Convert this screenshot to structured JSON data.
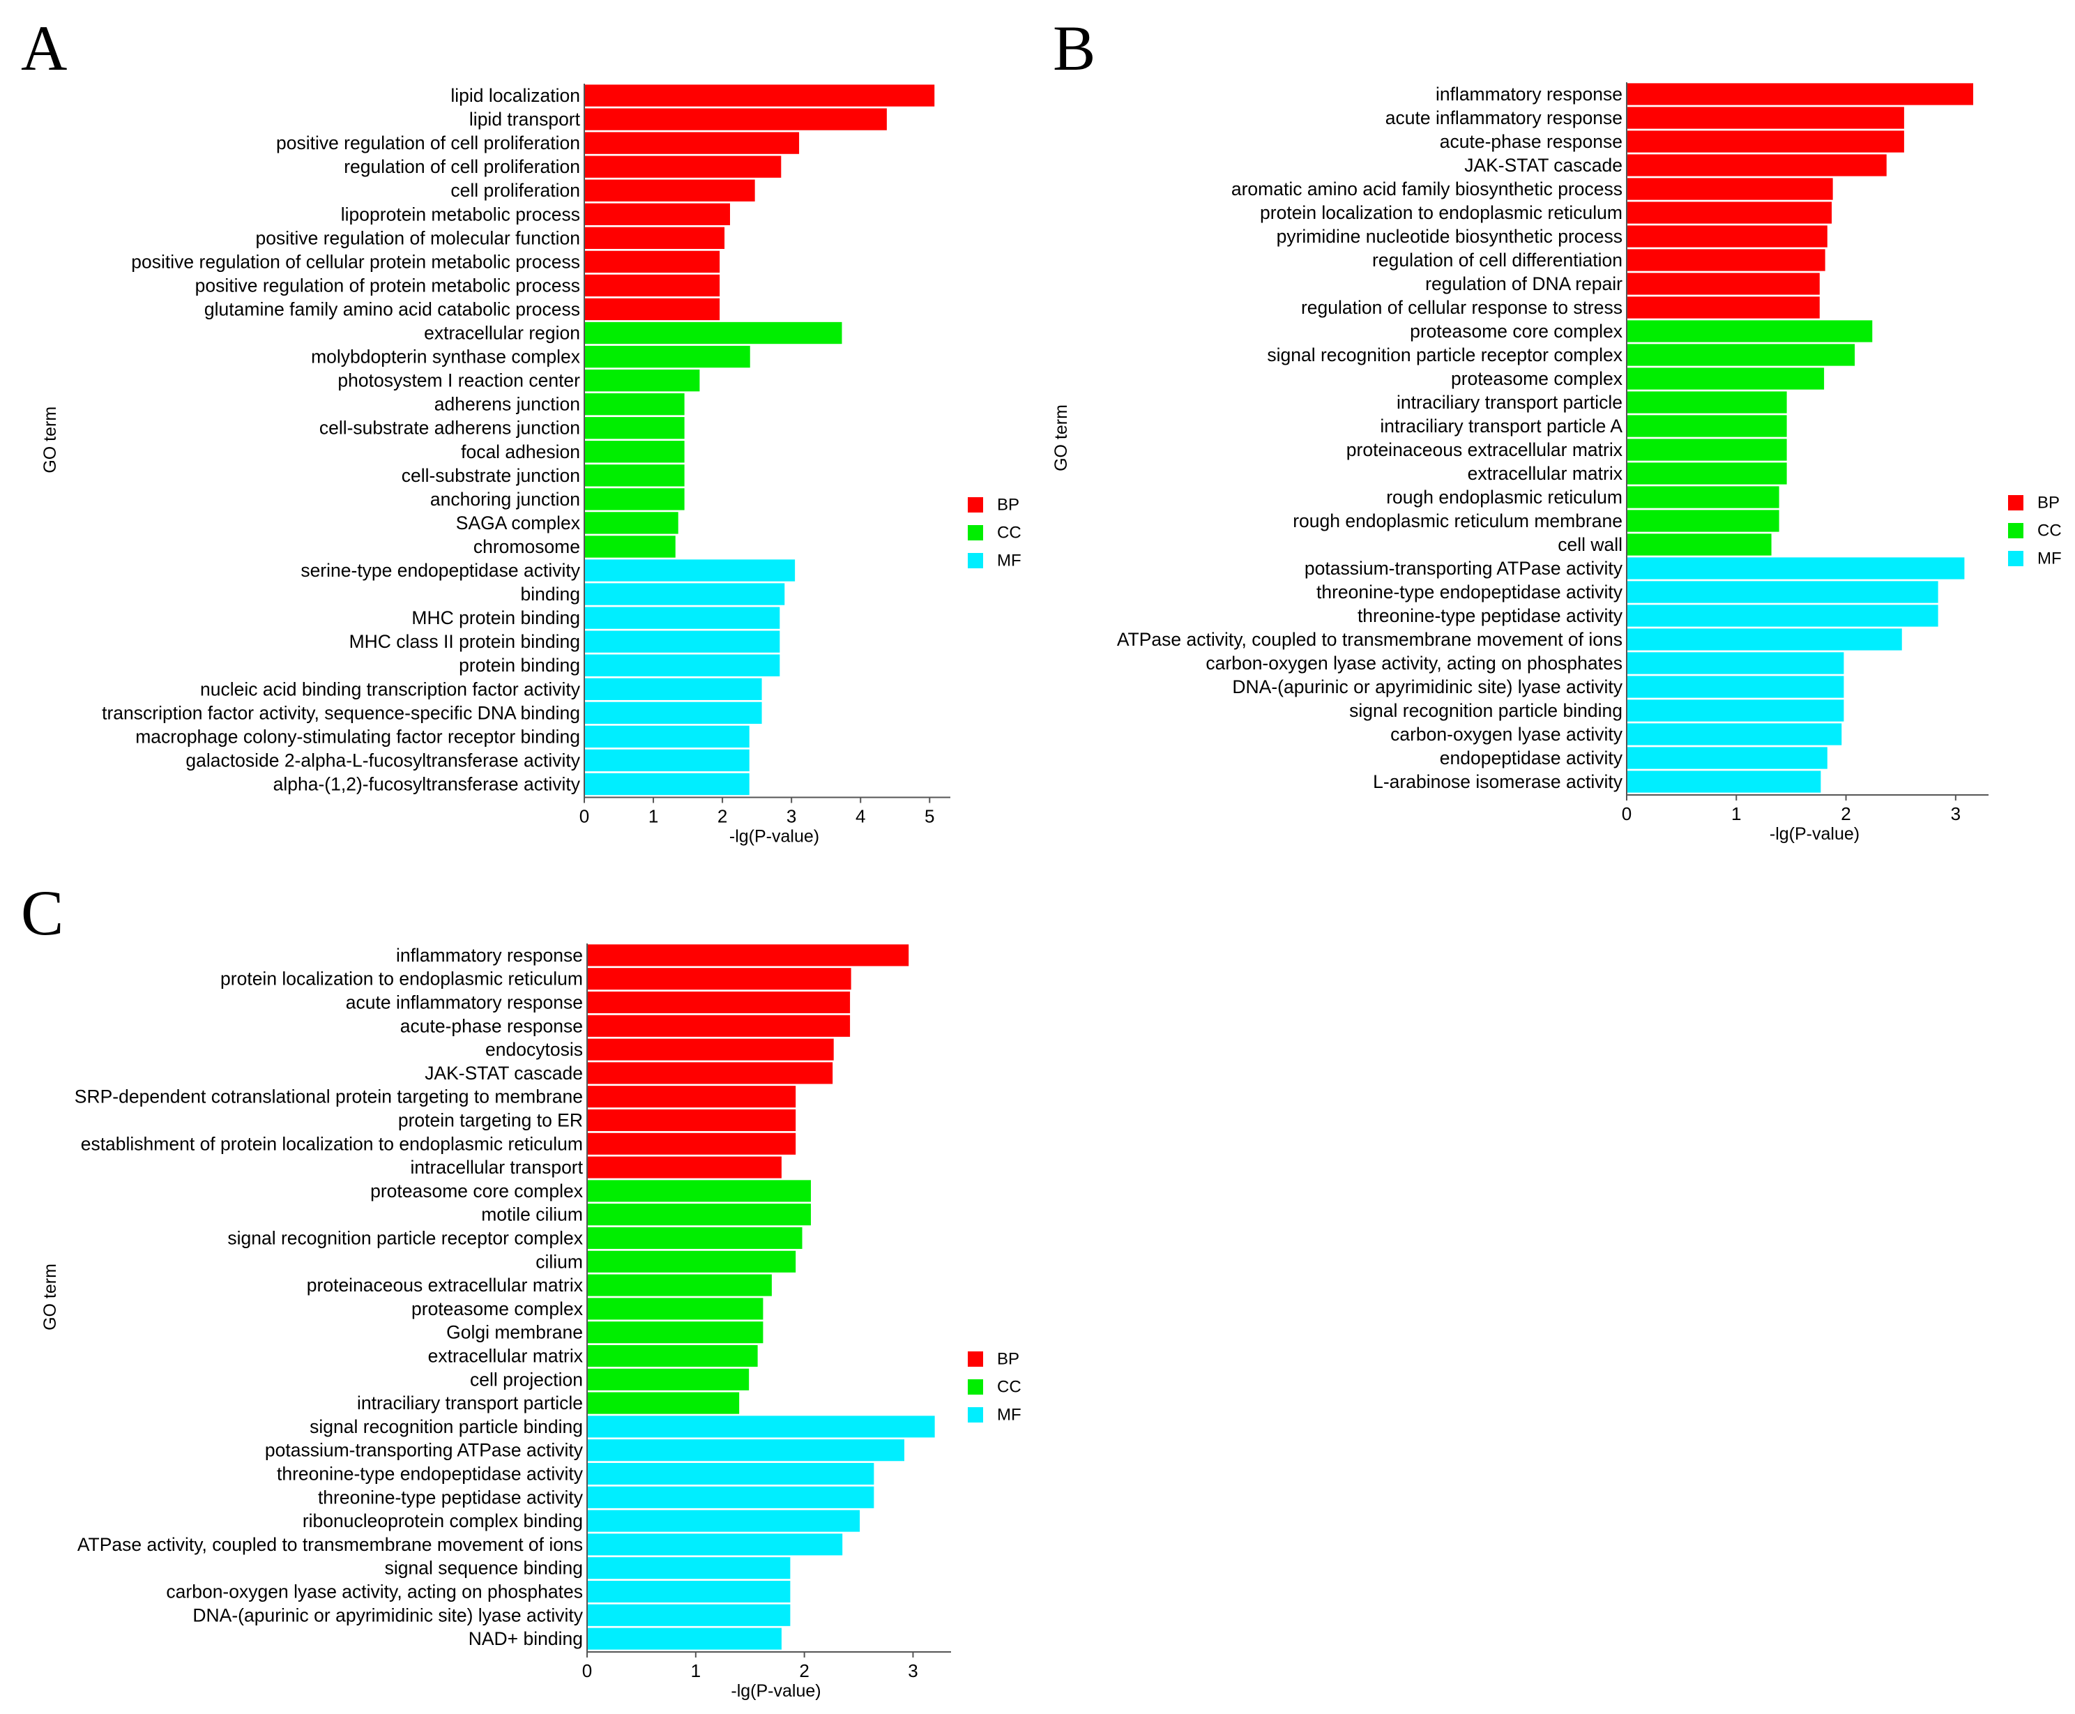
{
  "colors": {
    "BP": "#ff0000",
    "CC": "#00ee00",
    "MF": "#00eeff"
  },
  "chart_data": [
    {
      "type": "bar",
      "orientation": "horizontal",
      "panel": "A",
      "xlabel": "-lg(P-value)",
      "ylabel": "GO term",
      "xlim": [
        0,
        5.3
      ],
      "xticks": [
        0,
        1,
        2,
        3,
        4,
        5
      ],
      "legend": [
        "BP",
        "CC",
        "MF"
      ],
      "categories": [
        "lipid localization",
        "lipid transport",
        "positive regulation of cell proliferation",
        "regulation of cell proliferation",
        "cell proliferation",
        "lipoprotein metabolic process",
        "positive regulation of molecular function",
        "positive regulation of cellular protein metabolic process",
        "positive regulation of protein metabolic process",
        "glutamine family amino acid catabolic process",
        "extracellular region",
        "molybdopterin synthase complex",
        "photosystem I reaction center",
        "adherens junction",
        "cell-substrate adherens junction",
        "focal adhesion",
        "cell-substrate junction",
        "anchoring junction",
        "SAGA complex",
        "chromosome",
        "serine-type endopeptidase activity",
        "binding",
        "MHC protein binding",
        "MHC class II protein binding",
        "protein binding",
        "nucleic acid binding transcription factor activity",
        "transcription factor activity, sequence-specific DNA binding",
        "macrophage colony-stimulating factor receptor binding",
        "galactoside 2-alpha-L-fucosyltransferase activity",
        "alpha-(1,2)-fucosyltransferase activity"
      ],
      "values": [
        5.07,
        4.38,
        3.11,
        2.85,
        2.47,
        2.11,
        2.03,
        1.96,
        1.96,
        1.96,
        3.73,
        2.4,
        1.67,
        1.45,
        1.45,
        1.45,
        1.45,
        1.45,
        1.36,
        1.32,
        3.05,
        2.9,
        2.83,
        2.83,
        2.83,
        2.57,
        2.57,
        2.39,
        2.39,
        2.39
      ],
      "groups": [
        "BP",
        "BP",
        "BP",
        "BP",
        "BP",
        "BP",
        "BP",
        "BP",
        "BP",
        "BP",
        "CC",
        "CC",
        "CC",
        "CC",
        "CC",
        "CC",
        "CC",
        "CC",
        "CC",
        "CC",
        "MF",
        "MF",
        "MF",
        "MF",
        "MF",
        "MF",
        "MF",
        "MF",
        "MF",
        "MF"
      ]
    },
    {
      "type": "bar",
      "orientation": "horizontal",
      "panel": "B",
      "xlabel": "-lg(P-value)",
      "ylabel": "GO term",
      "xlim": [
        0,
        3.3
      ],
      "xticks": [
        0,
        1,
        2,
        3
      ],
      "legend": [
        "BP",
        "CC",
        "MF"
      ],
      "categories": [
        "inflammatory response",
        "acute inflammatory response",
        "acute-phase response",
        "JAK-STAT cascade",
        "aromatic amino acid family biosynthetic process",
        "protein localization to endoplasmic reticulum",
        "pyrimidine nucleotide biosynthetic process",
        "regulation of cell differentiation",
        "regulation of DNA repair",
        "regulation of cellular response to stress",
        "proteasome core complex",
        "signal recognition particle receptor complex",
        "proteasome complex",
        "intraciliary transport particle",
        "intraciliary transport particle A",
        "proteinaceous extracellular matrix",
        "extracellular matrix",
        "rough endoplasmic reticulum",
        "rough endoplasmic reticulum membrane",
        "cell wall",
        "potassium-transporting ATPase activity",
        "threonine-type endopeptidase activity",
        "threonine-type peptidase activity",
        "ATPase activity, coupled to transmembrane movement of ions",
        "carbon-oxygen lyase activity, acting on phosphates",
        "DNA-(apurinic or apyrimidinic site) lyase activity",
        "signal recognition particle binding",
        "carbon-oxygen lyase activity",
        "endopeptidase activity",
        "L-arabinose isomerase activity"
      ],
      "values": [
        3.16,
        2.53,
        2.53,
        2.37,
        1.88,
        1.87,
        1.83,
        1.81,
        1.76,
        1.76,
        2.24,
        2.08,
        1.8,
        1.46,
        1.46,
        1.46,
        1.46,
        1.39,
        1.39,
        1.32,
        3.08,
        2.84,
        2.84,
        2.51,
        1.98,
        1.98,
        1.98,
        1.96,
        1.83,
        1.77
      ],
      "groups": [
        "BP",
        "BP",
        "BP",
        "BP",
        "BP",
        "BP",
        "BP",
        "BP",
        "BP",
        "BP",
        "CC",
        "CC",
        "CC",
        "CC",
        "CC",
        "CC",
        "CC",
        "CC",
        "CC",
        "CC",
        "MF",
        "MF",
        "MF",
        "MF",
        "MF",
        "MF",
        "MF",
        "MF",
        "MF",
        "MF"
      ]
    },
    {
      "type": "bar",
      "orientation": "horizontal",
      "panel": "C",
      "xlabel": "-lg(P-value)",
      "ylabel": "GO term",
      "xlim": [
        0,
        3.35
      ],
      "xticks": [
        0,
        1,
        2,
        3
      ],
      "legend": [
        "BP",
        "CC",
        "MF"
      ],
      "categories": [
        "inflammatory response",
        "protein localization to endoplasmic reticulum",
        "acute inflammatory response",
        "acute-phase response",
        "endocytosis",
        "JAK-STAT cascade",
        "SRP-dependent cotranslational protein targeting to membrane",
        "protein targeting to ER",
        "establishment of protein localization to endoplasmic reticulum",
        "intracellular transport",
        "proteasome core complex",
        "motile cilium",
        "signal recognition particle receptor complex",
        "cilium",
        "proteinaceous extracellular matrix",
        "proteasome complex",
        "Golgi membrane",
        "extracellular matrix",
        "cell projection",
        "intraciliary transport particle",
        "signal recognition particle binding",
        "potassium-transporting ATPase activity",
        "threonine-type endopeptidase activity",
        "threonine-type peptidase activity",
        "ribonucleoprotein complex binding",
        "ATPase activity, coupled to transmembrane movement of ions",
        "signal sequence binding",
        "carbon-oxygen lyase activity, acting on phosphates",
        "DNA-(apurinic or apyrimidinic site) lyase activity",
        "NAD+ binding"
      ],
      "values": [
        2.96,
        2.43,
        2.42,
        2.42,
        2.27,
        2.26,
        1.92,
        1.92,
        1.92,
        1.79,
        2.06,
        2.06,
        1.98,
        1.92,
        1.7,
        1.62,
        1.62,
        1.57,
        1.49,
        1.4,
        3.2,
        2.92,
        2.64,
        2.64,
        2.51,
        2.35,
        1.87,
        1.87,
        1.87,
        1.79
      ],
      "groups": [
        "BP",
        "BP",
        "BP",
        "BP",
        "BP",
        "BP",
        "BP",
        "BP",
        "BP",
        "BP",
        "CC",
        "CC",
        "CC",
        "CC",
        "CC",
        "CC",
        "CC",
        "CC",
        "CC",
        "CC",
        "MF",
        "MF",
        "MF",
        "MF",
        "MF",
        "MF",
        "MF",
        "MF",
        "MF",
        "MF"
      ]
    }
  ]
}
